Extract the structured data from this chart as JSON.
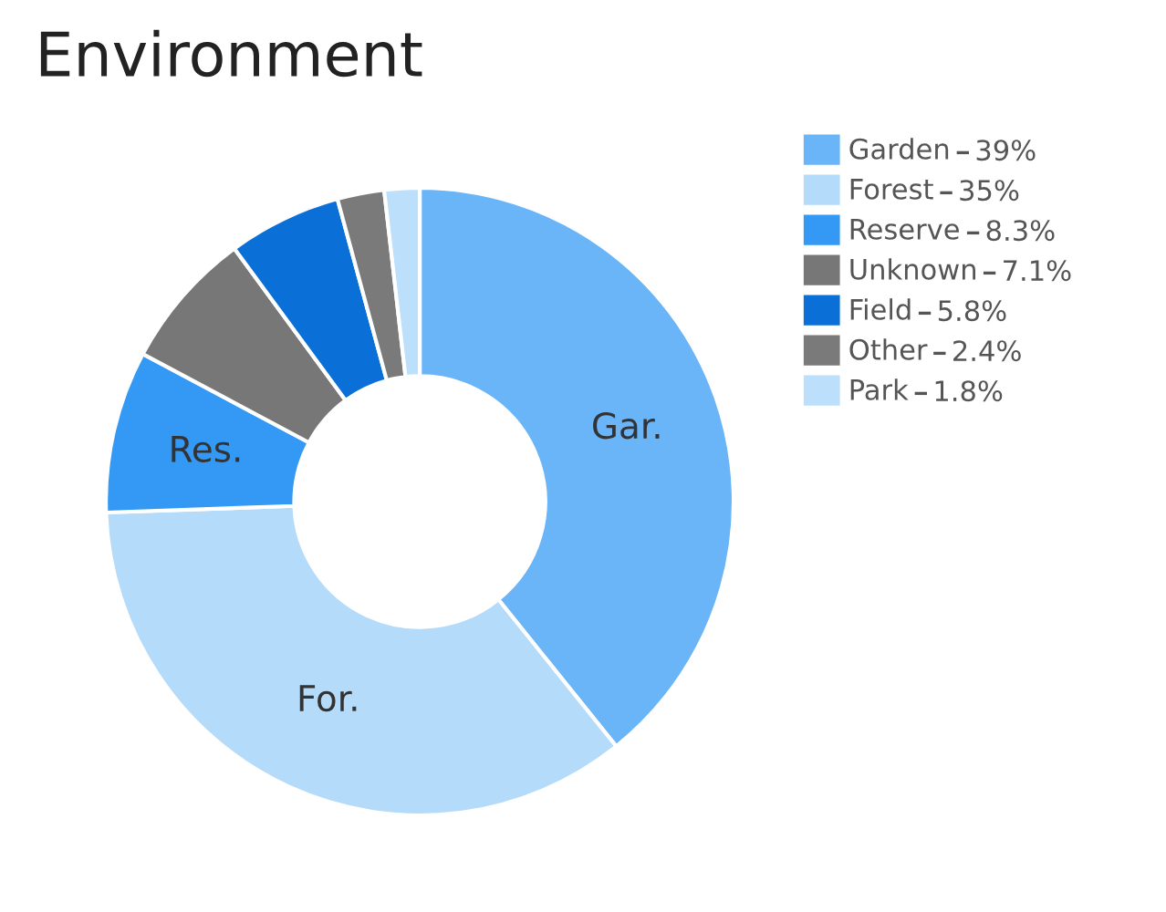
{
  "chart_data": {
    "type": "donut",
    "title": "Environment",
    "categories": [
      "Garden",
      "Forest",
      "Reserve",
      "Unknown",
      "Field",
      "Other",
      "Park"
    ],
    "values": [
      39,
      35,
      8.3,
      7.1,
      5.8,
      2.4,
      1.8
    ],
    "value_labels": [
      "39%",
      "35%",
      "8.3%",
      "7.1%",
      "5.8%",
      "2.4%",
      "1.8%"
    ],
    "colors": [
      "#6ab4f8",
      "#b5dbfb",
      "#3399f5",
      "#777777",
      "#0a6fd6",
      "#7a7a7a",
      "#bcdffb"
    ],
    "annotations": [
      {
        "text": "Gar.",
        "x": "Garden"
      },
      {
        "text": "For.",
        "x": "Forest"
      },
      {
        "text": "Res.",
        "x": "Reserve"
      }
    ],
    "legend": "top right"
  }
}
